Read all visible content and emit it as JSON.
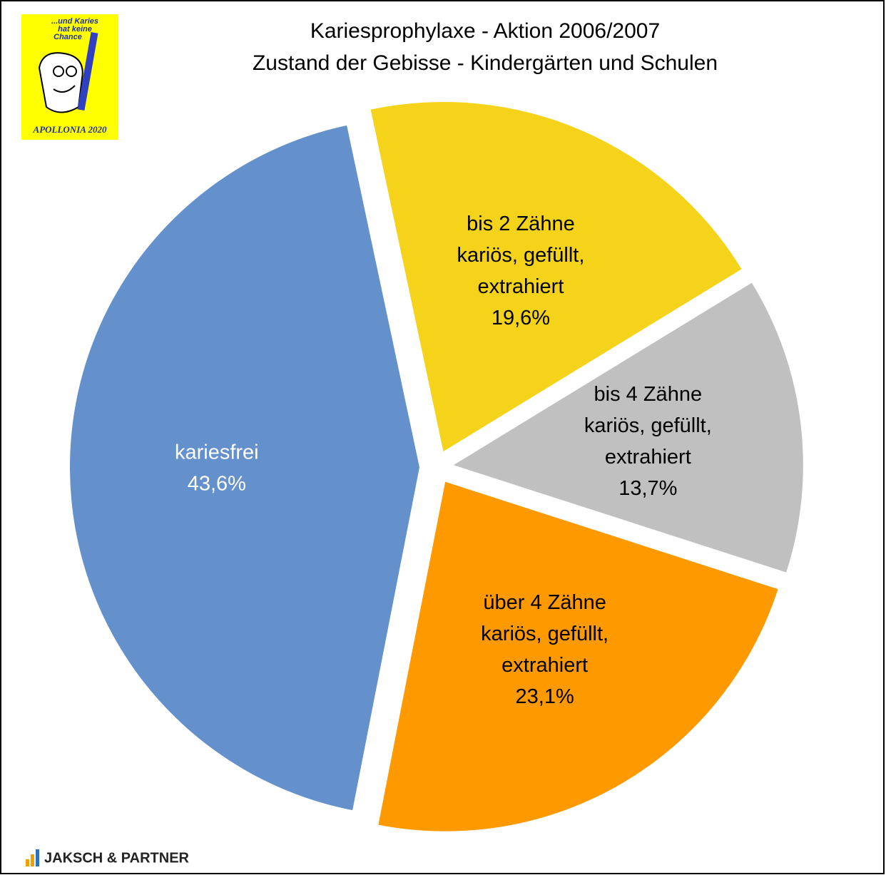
{
  "chart_data": {
    "type": "pie",
    "title": "Kariesprophylaxe - Aktion 2006/2007",
    "subtitle": "Zustand der Gebisse - Kindergärten und Schulen",
    "categories": [
      "bis 2 Zähne\nkariös, gefüllt,\nextrahiert",
      "bis 4 Zähne\nkariös, gefüllt,\nextrahiert",
      "über 4 Zähne\nkariös, gefüllt,\nextrahiert",
      "kariesfrei"
    ],
    "values": [
      19.6,
      13.7,
      23.1,
      43.6
    ],
    "value_labels": [
      "19,6%",
      "13,7%",
      "23,1%",
      "43,6%"
    ],
    "colors": [
      "#f5d31a",
      "#c0c0c0",
      "#ff9900",
      "#6490cc"
    ],
    "label_colors": [
      "#000000",
      "#000000",
      "#000000",
      "#ffffff"
    ]
  },
  "logo": {
    "slogan": [
      "...und Karies",
      "hat keine",
      "Chance"
    ],
    "name": "APOLLONIA 2020"
  },
  "footer": "JAKSCH & PARTNER"
}
